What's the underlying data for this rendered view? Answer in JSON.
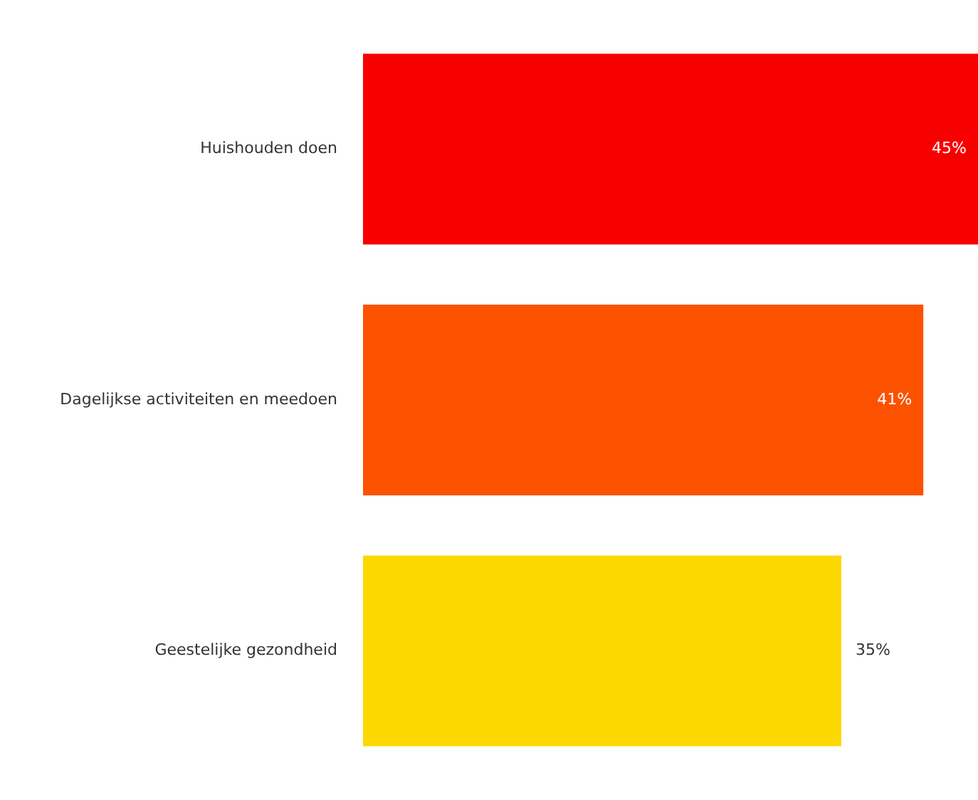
{
  "chart_data": {
    "type": "bar",
    "orientation": "horizontal",
    "categories": [
      "Huishouden doen",
      "Dagelijkse activiteiten en meedoen",
      "Geestelijke gezondheid"
    ],
    "values": [
      45,
      41,
      35
    ],
    "colors": [
      "#f70000",
      "#fc5200",
      "#fdd800"
    ],
    "value_labels": [
      "45%",
      "41%",
      "35%"
    ],
    "grid": false,
    "legend": false
  }
}
